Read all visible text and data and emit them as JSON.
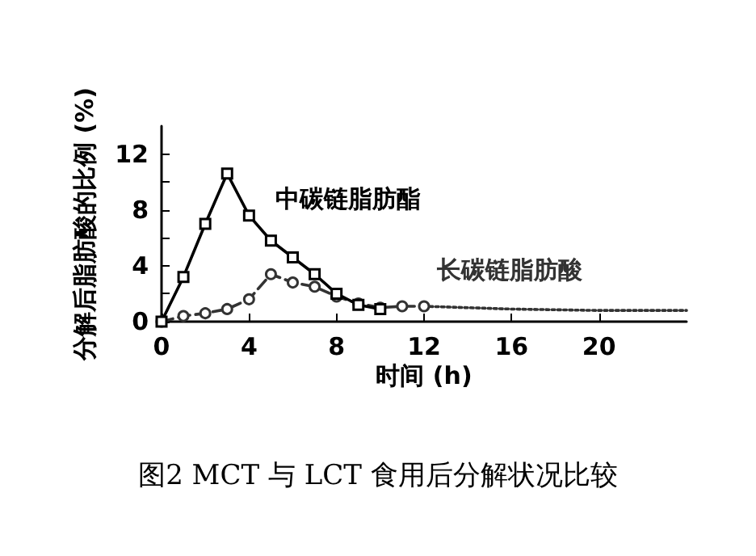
{
  "chart_data": {
    "type": "line",
    "xlabel": "时间 (h)",
    "ylabel": "分解后脂肪酸的比例 (%)",
    "annotations": [
      "图2 MCT 与 LCT 食用后分解状况比较"
    ],
    "xlim": [
      0,
      24
    ],
    "xticks": [
      0,
      4,
      8,
      12,
      16,
      20
    ],
    "ylim": [
      0,
      14
    ],
    "yticks": [
      0,
      {
        "value": 2,
        "label": null
      },
      4,
      {
        "value": 6,
        "label": null
      },
      8,
      {
        "value": 10,
        "label": null
      },
      12
    ],
    "grid": false,
    "legend": false,
    "series": [
      {
        "name": "中碳链脂肪酯",
        "color": "#000000",
        "marker": "square",
        "line_style": "solid",
        "x": [
          0,
          1,
          2,
          3,
          4,
          5,
          6,
          7,
          8,
          9,
          10
        ],
        "values": [
          0,
          3.2,
          7.0,
          10.6,
          7.6,
          5.8,
          4.6,
          3.4,
          2.0,
          1.2,
          0.9
        ]
      },
      {
        "name": "长碳链脂肪酸",
        "color": "#333333",
        "marker": "circle",
        "line_style": "dashed",
        "x": [
          0,
          1,
          2,
          3,
          4,
          5,
          6,
          7,
          8,
          9,
          10,
          11,
          12
        ],
        "values": [
          0,
          0.4,
          0.6,
          0.9,
          1.6,
          3.4,
          2.8,
          2.5,
          1.8,
          1.3,
          1.0,
          1.1,
          1.1
        ]
      },
      {
        "color": "#333333",
        "marker": "none",
        "line_style": "dotted",
        "x": [
          12,
          16,
          20,
          24
        ],
        "values": [
          1.1,
          0.9,
          0.8,
          0.8
        ]
      }
    ]
  }
}
